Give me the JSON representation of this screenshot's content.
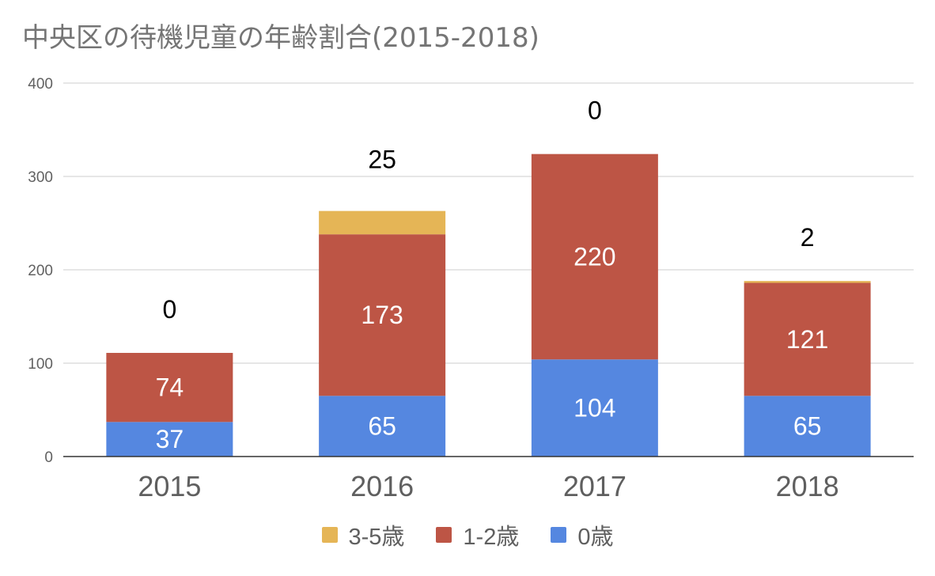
{
  "chart_data": {
    "type": "bar",
    "stacked": true,
    "title": "中央区の待機児童の年齢割合(2015-2018)",
    "categories": [
      "2015",
      "2016",
      "2017",
      "2018"
    ],
    "series": [
      {
        "name": "0歳",
        "color": "#5587e0",
        "label_color": "#ffffff",
        "values": [
          37,
          65,
          104,
          65
        ]
      },
      {
        "name": "1-2歳",
        "color": "#bd5545",
        "label_color": "#ffffff",
        "values": [
          74,
          173,
          220,
          121
        ]
      },
      {
        "name": "3-5歳",
        "color": "#e5b556",
        "label_color": "#000000",
        "values": [
          0,
          25,
          0,
          2
        ]
      }
    ],
    "legend_order": [
      2,
      1,
      0
    ],
    "ylim": [
      0,
      400
    ],
    "yticks": [
      0,
      100,
      200,
      300,
      400
    ],
    "xlabel": "",
    "ylabel": "",
    "grid": true,
    "legend_position": "bottom-center"
  }
}
